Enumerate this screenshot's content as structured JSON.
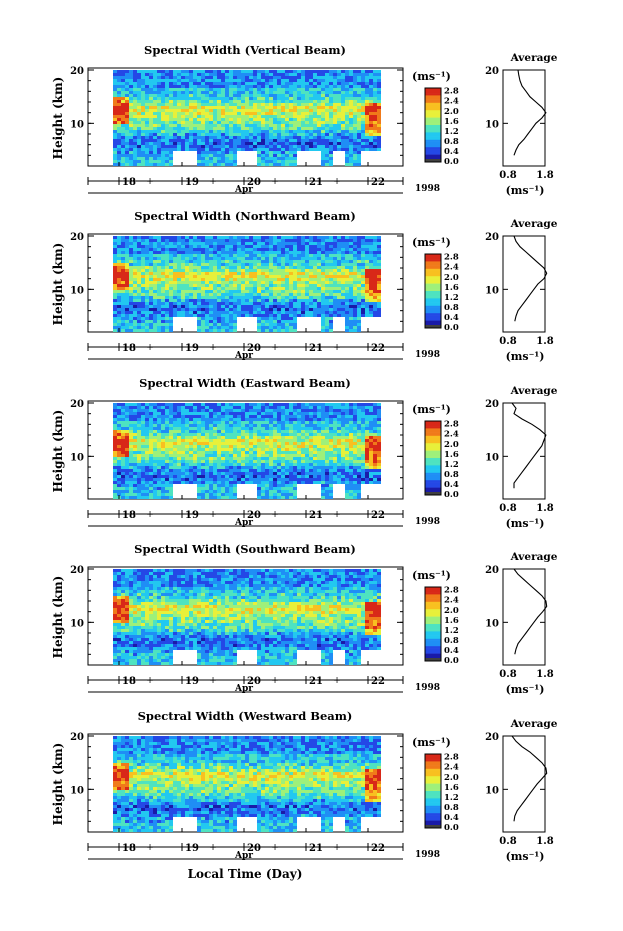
{
  "figure": {
    "ylabel": "Height (km)",
    "xlabel": "Local Time (Day)",
    "month_label": "Apr",
    "year_label": "1998",
    "colorbar_unit": "(ms⁻¹)",
    "average_title": "Average",
    "average_xlabel": "(ms⁻¹)",
    "colorbar_ticks": [
      "0.0",
      "0.4",
      "0.8",
      "1.2",
      "1.6",
      "2.0",
      "2.4",
      "2.8"
    ],
    "colors": {
      "colormap": [
        "#1a1aa8",
        "#2448e6",
        "#1f8ef5",
        "#22c8f0",
        "#4ee3c0",
        "#9ef07a",
        "#e8f03a",
        "#f8c020",
        "#f07a1a",
        "#d82818"
      ],
      "bottom_band": "#404040",
      "tick_marker": "#1a1a9a"
    }
  },
  "chart_data": [
    {
      "type": "heatmap",
      "title": "Spectral Width (Vertical Beam)",
      "x_ticks": [
        "18",
        "19",
        "20",
        "21",
        "22"
      ],
      "y_ticks": [
        "10",
        "20"
      ],
      "ylim": [
        2,
        20
      ],
      "colorbar_range": [
        0.0,
        2.8
      ],
      "average_profile": {
        "type": "line",
        "xlim": [
          0.8,
          1.8
        ],
        "x_ticks": [
          "0.8",
          "1.8"
        ],
        "y_ticks": [
          "10",
          "20"
        ],
        "x": [
          1.1,
          1.12,
          1.15,
          1.2,
          1.3,
          1.4,
          1.55,
          1.7,
          1.8,
          1.7,
          1.55,
          1.45,
          1.35,
          1.25,
          1.12,
          1.05,
          1.0
        ],
        "y": [
          20,
          19,
          18,
          17,
          16,
          15,
          14,
          13,
          12,
          11,
          10,
          9,
          8,
          7,
          6,
          5,
          4
        ]
      }
    },
    {
      "type": "heatmap",
      "title": "Spectral Width (Northward Beam)",
      "x_ticks": [
        "18",
        "19",
        "20",
        "21",
        "22"
      ],
      "y_ticks": [
        "10",
        "20"
      ],
      "ylim": [
        2,
        20
      ],
      "colorbar_range": [
        0.0,
        2.8
      ],
      "average_profile": {
        "type": "line",
        "xlim": [
          0.8,
          1.8
        ],
        "x_ticks": [
          "0.8",
          "1.8"
        ],
        "y_ticks": [
          "10",
          "20"
        ],
        "x": [
          1.0,
          1.05,
          1.15,
          1.3,
          1.45,
          1.6,
          1.75,
          1.82,
          1.75,
          1.6,
          1.5,
          1.4,
          1.3,
          1.2,
          1.1,
          1.05,
          1.02
        ],
        "y": [
          20,
          19,
          18,
          17,
          16,
          15,
          14,
          13,
          12,
          11,
          10,
          9,
          8,
          7,
          6,
          5,
          4
        ]
      }
    },
    {
      "type": "heatmap",
      "title": "Spectral Width (Eastward Beam)",
      "x_ticks": [
        "18",
        "19",
        "20",
        "21",
        "22"
      ],
      "y_ticks": [
        "10",
        "20"
      ],
      "ylim": [
        2,
        20
      ],
      "colorbar_range": [
        0.0,
        2.8
      ],
      "average_profile": {
        "type": "line",
        "xlim": [
          0.8,
          1.8
        ],
        "x_ticks": [
          "0.8",
          "1.8"
        ],
        "y_ticks": [
          "10",
          "20"
        ],
        "x": [
          0.95,
          1.05,
          1.0,
          1.2,
          1.45,
          1.65,
          1.8,
          1.75,
          1.7,
          1.6,
          1.5,
          1.4,
          1.3,
          1.2,
          1.1,
          1.0,
          1.0
        ],
        "y": [
          20,
          19,
          18,
          17,
          16,
          15,
          14,
          13,
          12,
          11,
          10,
          9,
          8,
          7,
          6,
          5,
          4
        ]
      }
    },
    {
      "type": "heatmap",
      "title": "Spectral Width (Southward Beam)",
      "x_ticks": [
        "18",
        "19",
        "20",
        "21",
        "22"
      ],
      "y_ticks": [
        "10",
        "20"
      ],
      "ylim": [
        2,
        20
      ],
      "colorbar_range": [
        0.0,
        2.8
      ],
      "average_profile": {
        "type": "line",
        "xlim": [
          0.8,
          1.8
        ],
        "x_ticks": [
          "0.8",
          "1.8"
        ],
        "y_ticks": [
          "10",
          "20"
        ],
        "x": [
          1.0,
          1.1,
          1.25,
          1.4,
          1.55,
          1.7,
          1.8,
          1.82,
          1.72,
          1.6,
          1.5,
          1.4,
          1.3,
          1.2,
          1.1,
          1.05,
          1.02
        ],
        "y": [
          20,
          19,
          18,
          17,
          16,
          15,
          14,
          13,
          12,
          11,
          10,
          9,
          8,
          7,
          6,
          5,
          4
        ]
      }
    },
    {
      "type": "heatmap",
      "title": "Spectral Width (Westward Beam)",
      "x_ticks": [
        "18",
        "19",
        "20",
        "21",
        "22"
      ],
      "y_ticks": [
        "10",
        "20"
      ],
      "ylim": [
        2,
        20
      ],
      "colorbar_range": [
        0.0,
        2.8
      ],
      "average_profile": {
        "type": "line",
        "xlim": [
          0.8,
          1.8
        ],
        "x_ticks": [
          "0.8",
          "1.8"
        ],
        "y_ticks": [
          "10",
          "20"
        ],
        "x": [
          0.95,
          1.05,
          1.2,
          1.4,
          1.55,
          1.7,
          1.8,
          1.82,
          1.7,
          1.58,
          1.48,
          1.38,
          1.28,
          1.18,
          1.08,
          1.02,
          1.0
        ],
        "y": [
          20,
          19,
          18,
          17,
          16,
          15,
          14,
          13,
          12,
          11,
          10,
          9,
          8,
          7,
          6,
          5,
          4
        ]
      }
    }
  ]
}
